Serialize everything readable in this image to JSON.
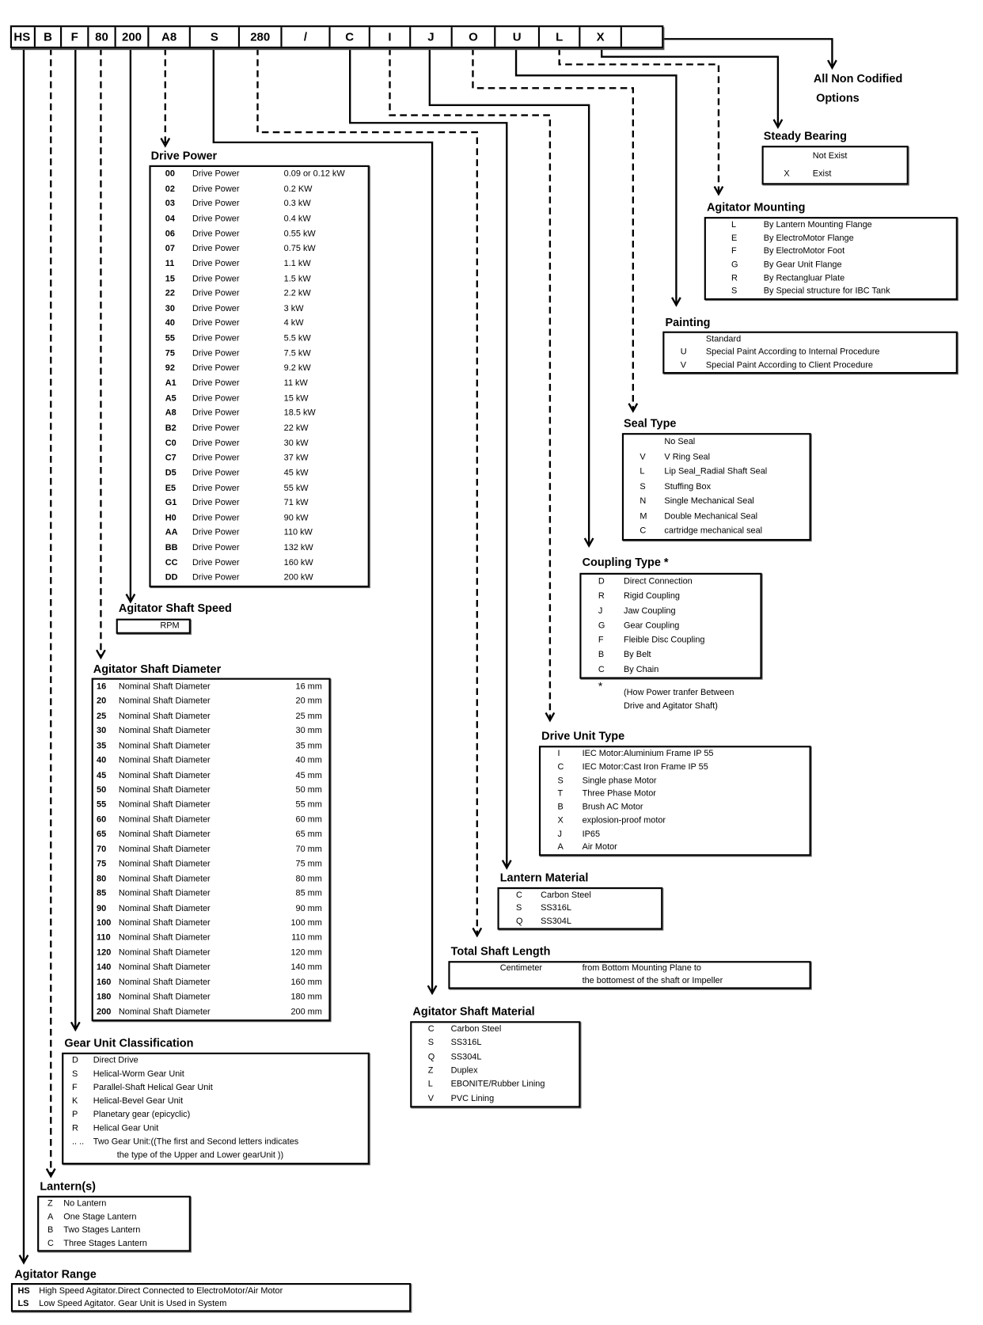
{
  "header": {
    "codes": [
      "HS",
      "B",
      "F",
      "80",
      "200",
      "A8",
      "S",
      "280",
      "/",
      "C",
      "I",
      "J",
      "O",
      "U",
      "L",
      "X",
      ""
    ]
  },
  "non_codified": {
    "line1": "All Non Codified",
    "line2": "Options"
  },
  "sections": {
    "drive_power": {
      "title": "Drive Power",
      "rows": [
        {
          "code": "00",
          "label": "Drive Power",
          "value": "0.09 or 0.12 kW"
        },
        {
          "code": "02",
          "label": "Drive Power",
          "value": "0.2 KW"
        },
        {
          "code": "03",
          "label": "Drive Power",
          "value": "0.3 kW"
        },
        {
          "code": "04",
          "label": "Drive Power",
          "value": "0.4 kW"
        },
        {
          "code": "06",
          "label": "Drive Power",
          "value": "0.55 kW"
        },
        {
          "code": "07",
          "label": "Drive Power",
          "value": "0.75 kW"
        },
        {
          "code": "11",
          "label": "Drive Power",
          "value": "1.1 kW"
        },
        {
          "code": "15",
          "label": "Drive Power",
          "value": "1.5 kW"
        },
        {
          "code": "22",
          "label": "Drive Power",
          "value": "2.2 kW"
        },
        {
          "code": "30",
          "label": "Drive Power",
          "value": "3 kW"
        },
        {
          "code": "40",
          "label": "Drive Power",
          "value": "4 kW"
        },
        {
          "code": "55",
          "label": "Drive Power",
          "value": "5.5 kW"
        },
        {
          "code": "75",
          "label": "Drive Power",
          "value": "7.5 kW"
        },
        {
          "code": "92",
          "label": "Drive Power",
          "value": "9.2 kW"
        },
        {
          "code": "A1",
          "label": "Drive Power",
          "value": "11 kW"
        },
        {
          "code": "A5",
          "label": "Drive Power",
          "value": "15 kW"
        },
        {
          "code": "A8",
          "label": "Drive Power",
          "value": "18.5 kW"
        },
        {
          "code": "B2",
          "label": "Drive Power",
          "value": "22 kW"
        },
        {
          "code": "C0",
          "label": "Drive Power",
          "value": "30 kW"
        },
        {
          "code": "C7",
          "label": "Drive Power",
          "value": "37 kW"
        },
        {
          "code": "D5",
          "label": "Drive Power",
          "value": "45 kW"
        },
        {
          "code": "E5",
          "label": "Drive Power",
          "value": "55 kW"
        },
        {
          "code": "G1",
          "label": "Drive Power",
          "value": "71 kW"
        },
        {
          "code": "H0",
          "label": "Drive Power",
          "value": "90 kW"
        },
        {
          "code": "AA",
          "label": "Drive Power",
          "value": "110 kW"
        },
        {
          "code": "BB",
          "label": "Drive Power",
          "value": "132 kW"
        },
        {
          "code": "CC",
          "label": "Drive Power",
          "value": "160 kW"
        },
        {
          "code": "DD",
          "label": "Drive Power",
          "value": "200 kW"
        }
      ]
    },
    "steady_bearing": {
      "title": "Steady Bearing",
      "rows": [
        {
          "code": "",
          "label": "Not Exist"
        },
        {
          "code": "X",
          "label": "Exist"
        }
      ]
    },
    "agitator_mounting": {
      "title": "Agitator Mounting",
      "rows": [
        {
          "code": "L",
          "label": "By Lantern Mounting Flange"
        },
        {
          "code": "E",
          "label": "By ElectroMotor Flange"
        },
        {
          "code": "F",
          "label": "By ElectroMotor Foot"
        },
        {
          "code": "G",
          "label": "By Gear Unit Flange"
        },
        {
          "code": "R",
          "label": "By Rectangluar Plate"
        },
        {
          "code": "S",
          "label": "By Special structure for IBC Tank"
        }
      ]
    },
    "painting": {
      "title": "Painting",
      "rows": [
        {
          "code": "",
          "label": "Standard"
        },
        {
          "code": "U",
          "label": "Special Paint According to Internal Procedure"
        },
        {
          "code": "V",
          "label": "Special Paint According to Client Procedure"
        }
      ]
    },
    "seal_type": {
      "title": "Seal Type",
      "rows": [
        {
          "code": "",
          "label": "No Seal"
        },
        {
          "code": "V",
          "label": "V Ring Seal"
        },
        {
          "code": "L",
          "label": "Lip Seal_Radial Shaft Seal"
        },
        {
          "code": "S",
          "label": "Stuffing Box"
        },
        {
          "code": "N",
          "label": "Single Mechanical Seal"
        },
        {
          "code": "M",
          "label": "Double Mechanical Seal"
        },
        {
          "code": "C",
          "label": "cartridge mechanical seal"
        }
      ]
    },
    "coupling_type": {
      "title": "Coupling Type *",
      "rows": [
        {
          "code": "D",
          "label": "Direct Connection"
        },
        {
          "code": "R",
          "label": "Rigid Coupling"
        },
        {
          "code": "J",
          "label": "Jaw Coupling"
        },
        {
          "code": "G",
          "label": "Gear Coupling"
        },
        {
          "code": "F",
          "label": "Fleible Disc Coupling"
        },
        {
          "code": "B",
          "label": "By Belt"
        },
        {
          "code": "C",
          "label": "By Chain"
        }
      ],
      "footnote": {
        "mark": "*",
        "line1": "(How Power tranfer Between",
        "line2": "Drive and Agitator Shaft)"
      }
    },
    "drive_unit_type": {
      "title": "Drive Unit Type",
      "rows": [
        {
          "code": "I",
          "label": "IEC Motor:Aluminium Frame IP 55"
        },
        {
          "code": "C",
          "label": "IEC Motor:Cast Iron Frame IP 55"
        },
        {
          "code": "S",
          "label": "Single phase Motor"
        },
        {
          "code": "T",
          "label": "Three Phase Motor"
        },
        {
          "code": "B",
          "label": "Brush AC Motor"
        },
        {
          "code": "X",
          "label": "explosion-proof motor"
        },
        {
          "code": "J",
          "label": "IP65"
        },
        {
          "code": "A",
          "label": "Air Motor"
        }
      ]
    },
    "lantern_material": {
      "title": "Lantern Material",
      "rows": [
        {
          "code": "C",
          "label": "Carbon Steel"
        },
        {
          "code": "S",
          "label": "SS316L"
        },
        {
          "code": "Q",
          "label": "SS304L"
        }
      ]
    },
    "total_shaft_length": {
      "title": "Total Shaft Length",
      "rows": [
        {
          "code": "Centimeter",
          "label": "from Bottom Mounting Plane to"
        },
        {
          "code": "",
          "label": "the bottomest of the shaft or Impeller"
        }
      ]
    },
    "agitator_shaft_material": {
      "title": "Agitator Shaft Material",
      "rows": [
        {
          "code": "C",
          "label": "Carbon Steel"
        },
        {
          "code": "S",
          "label": "SS316L"
        },
        {
          "code": "Q",
          "label": "SS304L"
        },
        {
          "code": "Z",
          "label": "Duplex"
        },
        {
          "code": "L",
          "label": "EBONITE/Rubber Lining"
        },
        {
          "code": "V",
          "label": "PVC Lining"
        }
      ]
    },
    "agitator_shaft_speed": {
      "title": "Agitator Shaft Speed",
      "rows": [
        {
          "code": "",
          "label": "RPM"
        }
      ]
    },
    "agitator_shaft_diameter": {
      "title": "Agitator Shaft Diameter",
      "rows": [
        {
          "code": "16",
          "label": "Nominal Shaft Diameter",
          "value": "16 mm"
        },
        {
          "code": "20",
          "label": "Nominal Shaft Diameter",
          "value": "20 mm"
        },
        {
          "code": "25",
          "label": "Nominal Shaft Diameter",
          "value": "25 mm"
        },
        {
          "code": "30",
          "label": "Nominal Shaft Diameter",
          "value": "30 mm"
        },
        {
          "code": "35",
          "label": "Nominal Shaft Diameter",
          "value": "35 mm"
        },
        {
          "code": "40",
          "label": "Nominal Shaft Diameter",
          "value": "40 mm"
        },
        {
          "code": "45",
          "label": "Nominal Shaft Diameter",
          "value": "45 mm"
        },
        {
          "code": "50",
          "label": "Nominal Shaft Diameter",
          "value": "50 mm"
        },
        {
          "code": "55",
          "label": "Nominal Shaft Diameter",
          "value": "55 mm"
        },
        {
          "code": "60",
          "label": "Nominal Shaft Diameter",
          "value": "60 mm"
        },
        {
          "code": "65",
          "label": "Nominal Shaft Diameter",
          "value": "65 mm"
        },
        {
          "code": "70",
          "label": "Nominal Shaft Diameter",
          "value": "70 mm"
        },
        {
          "code": "75",
          "label": "Nominal Shaft Diameter",
          "value": "75 mm"
        },
        {
          "code": "80",
          "label": "Nominal Shaft Diameter",
          "value": "80 mm"
        },
        {
          "code": "85",
          "label": "Nominal Shaft Diameter",
          "value": "85 mm"
        },
        {
          "code": "90",
          "label": "Nominal Shaft Diameter",
          "value": "90 mm"
        },
        {
          "code": "100",
          "label": "Nominal Shaft Diameter",
          "value": "100 mm"
        },
        {
          "code": "110",
          "label": "Nominal Shaft Diameter",
          "value": "110 mm"
        },
        {
          "code": "120",
          "label": "Nominal Shaft Diameter",
          "value": "120 mm"
        },
        {
          "code": "140",
          "label": "Nominal Shaft Diameter",
          "value": "140 mm"
        },
        {
          "code": "160",
          "label": "Nominal Shaft Diameter",
          "value": "160 mm"
        },
        {
          "code": "180",
          "label": "Nominal Shaft Diameter",
          "value": "180 mm"
        },
        {
          "code": "200",
          "label": "Nominal Shaft Diameter",
          "value": "200 mm"
        }
      ]
    },
    "gear_unit_classification": {
      "title": "Gear Unit Classification",
      "rows": [
        {
          "code": "D",
          "label": "Direct Drive"
        },
        {
          "code": "S",
          "label": "Helical-Worm Gear Unit"
        },
        {
          "code": "F",
          "label": "Parallel-Shaft Helical Gear Unit"
        },
        {
          "code": "K",
          "label": "Helical-Bevel Gear Unit"
        },
        {
          "code": "P",
          "label": "Planetary gear (epicyclic)"
        },
        {
          "code": "R",
          "label": "Helical Gear Unit"
        },
        {
          "code": ".. ..",
          "label": "Two Gear Unit:((The first and Second letters indicates"
        },
        {
          "code": "",
          "label": "the type of the Upper and Lower gearUnit ))"
        }
      ]
    },
    "lanterns": {
      "title": "Lantern(s)",
      "rows": [
        {
          "code": "Z",
          "label": "No Lantern"
        },
        {
          "code": "A",
          "label": "One Stage Lantern"
        },
        {
          "code": "B",
          "label": "Two Stages Lantern"
        },
        {
          "code": "C",
          "label": "Three Stages Lantern"
        }
      ]
    },
    "agitator_range": {
      "title": "Agitator Range",
      "rows": [
        {
          "code": "HS",
          "label": "High Speed Agitator.Direct Connected to ElectroMotor/Air Motor"
        },
        {
          "code": "LS",
          "label": "Low Speed Agitator. Gear Unit is Used  in System"
        }
      ]
    }
  }
}
